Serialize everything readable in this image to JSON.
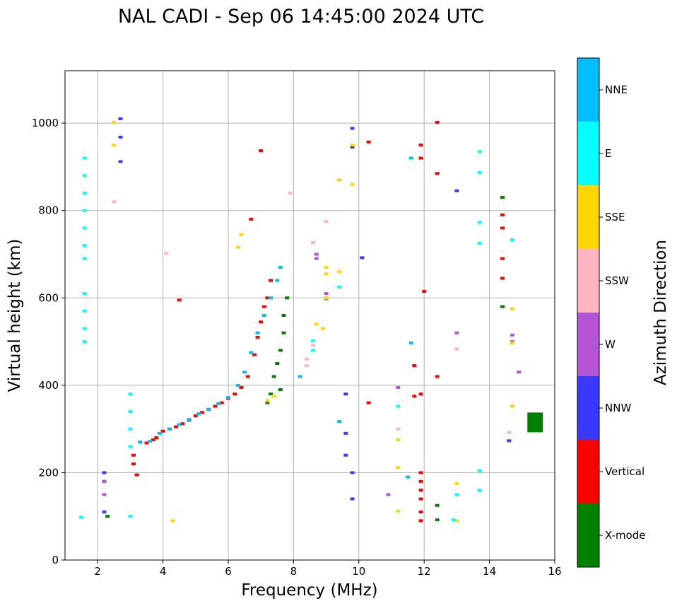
{
  "chart_data": {
    "type": "scatter",
    "title": "NAL CADI - Sep 06 14:45:00 2024 UTC",
    "xlabel": "Frequency (MHz)",
    "ylabel": "Virtual height (km)",
    "xlim": [
      1,
      16
    ],
    "ylim": [
      0,
      1120
    ],
    "xticks": [
      2,
      4,
      6,
      8,
      10,
      12,
      14,
      16
    ],
    "yticks": [
      0,
      200,
      400,
      600,
      800,
      1000
    ],
    "grid": true,
    "colorbar": {
      "label": "Azimuth Direction",
      "categories": [
        {
          "name": "X-mode",
          "color": "#008000"
        },
        {
          "name": "Vertical",
          "color": "#ff0000"
        },
        {
          "name": "NNW",
          "color": "#3a3aff"
        },
        {
          "name": "W",
          "color": "#b455d6"
        },
        {
          "name": "SSW",
          "color": "#ffb6c1"
        },
        {
          "name": "SSE",
          "color": "#ffd700"
        },
        {
          "name": "E",
          "color": "#00ffff"
        },
        {
          "name": "NNE",
          "color": "#00bfff"
        }
      ]
    },
    "series": [
      {
        "name": "Vertical",
        "points": [
          [
            3.1,
            240
          ],
          [
            3.1,
            220
          ],
          [
            3.2,
            195
          ],
          [
            3.3,
            270
          ],
          [
            3.5,
            268
          ],
          [
            3.7,
            275
          ],
          [
            3.8,
            280
          ],
          [
            4.0,
            295
          ],
          [
            4.2,
            300
          ],
          [
            4.4,
            305
          ],
          [
            4.6,
            312
          ],
          [
            4.8,
            320
          ],
          [
            5.0,
            330
          ],
          [
            5.2,
            338
          ],
          [
            5.4,
            345
          ],
          [
            5.6,
            352
          ],
          [
            5.8,
            360
          ],
          [
            6.0,
            370
          ],
          [
            6.2,
            380
          ],
          [
            6.4,
            395
          ],
          [
            6.6,
            420
          ],
          [
            6.8,
            470
          ],
          [
            6.9,
            510
          ],
          [
            7.0,
            545
          ],
          [
            7.1,
            580
          ],
          [
            7.2,
            600
          ],
          [
            7.3,
            640
          ],
          [
            6.7,
            780
          ],
          [
            7.0,
            937
          ],
          [
            4.5,
            595
          ],
          [
            10.3,
            957
          ],
          [
            11.9,
            950
          ],
          [
            11.9,
            920
          ],
          [
            12.4,
            1002
          ],
          [
            12.4,
            885
          ],
          [
            12.4,
            420
          ],
          [
            11.9,
            380
          ],
          [
            11.9,
            200
          ],
          [
            11.9,
            180
          ],
          [
            11.9,
            160
          ],
          [
            11.9,
            140
          ],
          [
            11.9,
            110
          ],
          [
            11.9,
            90
          ],
          [
            14.4,
            830
          ],
          [
            14.4,
            790
          ],
          [
            14.4,
            760
          ],
          [
            14.4,
            690
          ],
          [
            14.4,
            645
          ],
          [
            14.4,
            580
          ],
          [
            12.0,
            615
          ],
          [
            11.7,
            445
          ],
          [
            10.3,
            360
          ],
          [
            11.7,
            375
          ]
        ]
      },
      {
        "name": "X-mode",
        "points": [
          [
            15.4,
            315
          ],
          [
            7.6,
            390
          ],
          [
            7.4,
            420
          ],
          [
            7.5,
            450
          ],
          [
            7.6,
            480
          ],
          [
            7.7,
            520
          ],
          [
            7.7,
            560
          ],
          [
            7.8,
            600
          ],
          [
            7.3,
            380
          ],
          [
            7.2,
            360
          ],
          [
            14.4,
            830
          ],
          [
            14.4,
            580
          ],
          [
            12.4,
            125
          ],
          [
            12.4,
            92
          ],
          [
            2.3,
            100
          ]
        ]
      },
      {
        "name": "NNW",
        "points": [
          [
            9.8,
            988
          ],
          [
            9.8,
            945
          ],
          [
            2.7,
            1010
          ],
          [
            2.7,
            968
          ],
          [
            2.7,
            912
          ],
          [
            13.0,
            845
          ],
          [
            14.6,
            273
          ],
          [
            9.8,
            200
          ],
          [
            9.8,
            140
          ],
          [
            9.6,
            240
          ],
          [
            9.6,
            290
          ],
          [
            9.6,
            380
          ],
          [
            10.1,
            692
          ],
          [
            2.2,
            200
          ],
          [
            2.2,
            180
          ],
          [
            2.2,
            110
          ]
        ]
      },
      {
        "name": "W",
        "points": [
          [
            9.0,
            610
          ],
          [
            9.0,
            598
          ],
          [
            8.7,
            700
          ],
          [
            8.7,
            690
          ],
          [
            11.2,
            395
          ],
          [
            14.9,
            430
          ],
          [
            14.7,
            515
          ],
          [
            14.7,
            500
          ],
          [
            10.9,
            150
          ],
          [
            13.0,
            520
          ],
          [
            2.2,
            180
          ],
          [
            2.2,
            150
          ]
        ]
      },
      {
        "name": "SSW",
        "points": [
          [
            8.4,
            460
          ],
          [
            8.4,
            445
          ],
          [
            8.6,
            727
          ],
          [
            8.6,
            492
          ],
          [
            9.0,
            775
          ],
          [
            14.6,
            292
          ],
          [
            11.2,
            300
          ],
          [
            13.0,
            483
          ],
          [
            4.1,
            702
          ],
          [
            7.9,
            840
          ],
          [
            2.5,
            820
          ]
        ]
      },
      {
        "name": "SSE",
        "points": [
          [
            9.0,
            670
          ],
          [
            9.0,
            655
          ],
          [
            9.0,
            600
          ],
          [
            8.7,
            540
          ],
          [
            8.9,
            530
          ],
          [
            9.4,
            870
          ],
          [
            9.4,
            660
          ],
          [
            9.8,
            950
          ],
          [
            9.8,
            860
          ],
          [
            14.7,
            575
          ],
          [
            14.7,
            497
          ],
          [
            14.7,
            352
          ],
          [
            13.0,
            175
          ],
          [
            13.0,
            90
          ],
          [
            11.2,
            275
          ],
          [
            11.2,
            212
          ],
          [
            11.2,
            112
          ],
          [
            7.2,
            365
          ],
          [
            7.4,
            375
          ],
          [
            6.3,
            716
          ],
          [
            6.4,
            745
          ],
          [
            2.5,
            1002
          ],
          [
            2.5,
            950
          ],
          [
            4.3,
            90
          ]
        ]
      },
      {
        "name": "E",
        "points": [
          [
            1.6,
            920
          ],
          [
            1.6,
            880
          ],
          [
            1.6,
            840
          ],
          [
            1.6,
            800
          ],
          [
            1.6,
            760
          ],
          [
            1.6,
            720
          ],
          [
            1.6,
            690
          ],
          [
            1.6,
            610
          ],
          [
            1.6,
            570
          ],
          [
            1.6,
            530
          ],
          [
            1.6,
            500
          ],
          [
            1.5,
            98
          ],
          [
            3.0,
            380
          ],
          [
            3.0,
            340
          ],
          [
            3.0,
            300
          ],
          [
            3.0,
            260
          ],
          [
            3.0,
            100
          ],
          [
            13.7,
            935
          ],
          [
            13.7,
            887
          ],
          [
            13.7,
            773
          ],
          [
            13.7,
            725
          ],
          [
            13.7,
            205
          ],
          [
            13.7,
            160
          ],
          [
            14.7,
            733
          ],
          [
            11.2,
            352
          ],
          [
            9.4,
            625
          ],
          [
            8.6,
            502
          ],
          [
            8.6,
            480
          ],
          [
            13.0,
            150
          ],
          [
            12.9,
            92
          ]
        ]
      },
      {
        "name": "NNE",
        "points": [
          [
            3.3,
            270
          ],
          [
            3.6,
            272
          ],
          [
            3.9,
            290
          ],
          [
            4.2,
            300
          ],
          [
            4.5,
            310
          ],
          [
            4.8,
            322
          ],
          [
            5.1,
            335
          ],
          [
            5.4,
            345
          ],
          [
            5.7,
            358
          ],
          [
            6.0,
            372
          ],
          [
            6.3,
            400
          ],
          [
            6.5,
            430
          ],
          [
            6.7,
            475
          ],
          [
            6.9,
            520
          ],
          [
            7.1,
            560
          ],
          [
            7.3,
            600
          ],
          [
            7.5,
            640
          ],
          [
            7.6,
            670
          ],
          [
            11.5,
            190
          ],
          [
            11.6,
            920
          ],
          [
            11.6,
            497
          ],
          [
            9.4,
            317
          ],
          [
            8.2,
            420
          ]
        ]
      }
    ]
  }
}
